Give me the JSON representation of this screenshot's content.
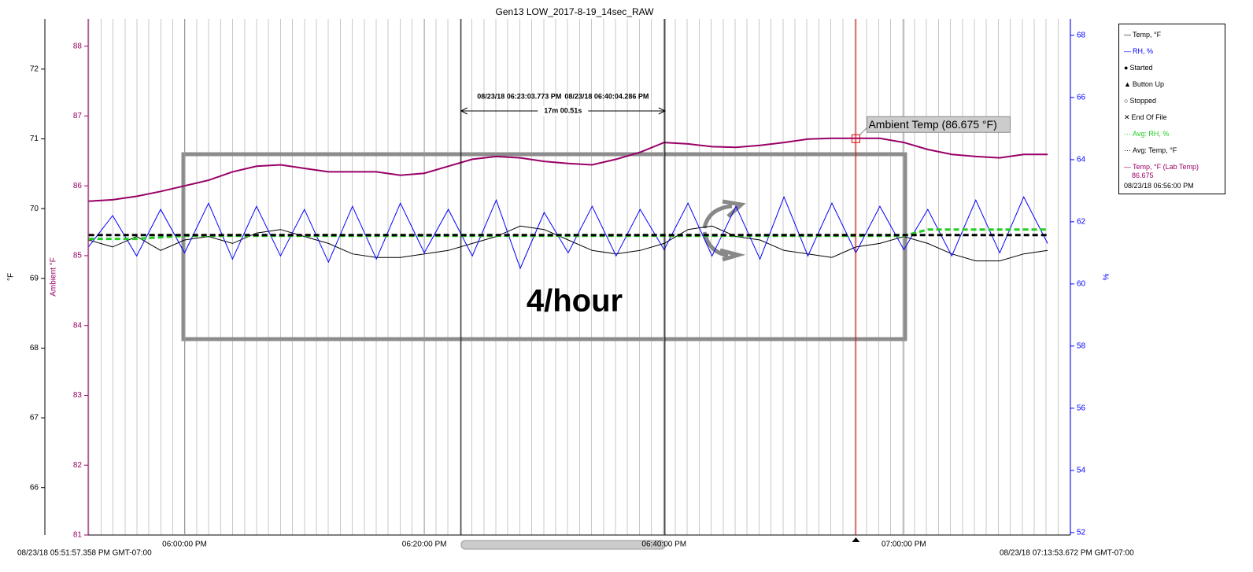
{
  "chart_data": {
    "type": "line",
    "title": "Gen13 LOW_2017-8-19_14sec_RAW",
    "ylabel": "°F",
    "y2label": "Ambient °F",
    "y3label": "%",
    "xlim": [
      "08/23/18 05:51:57.358 PM GMT-07:00",
      "08/23/18 07:13:53.672 PM GMT-07:00"
    ],
    "xticks": [
      "06:00:00 PM",
      "06:20:00 PM",
      "06:40:00 PM",
      "07:00:00 PM"
    ],
    "ylim": [
      65.32,
      72.72
    ],
    "yticks": [
      66,
      67,
      68,
      69,
      70,
      71,
      72
    ],
    "y2lim": [
      81,
      88.39
    ],
    "y2ticks": [
      81,
      82,
      83,
      84,
      85,
      86,
      87,
      88
    ],
    "y3lim": [
      51.92,
      68.53
    ],
    "y3ticks": [
      52,
      54,
      56,
      58,
      60,
      62,
      64,
      66,
      68
    ],
    "x": [
      "05:52:00 PM",
      "05:54:00 PM",
      "05:56:00 PM",
      "05:58:00 PM",
      "06:00:00 PM",
      "06:02:00 PM",
      "06:04:00 PM",
      "06:06:00 PM",
      "06:08:00 PM",
      "06:10:00 PM",
      "06:12:00 PM",
      "06:14:00 PM",
      "06:16:00 PM",
      "06:18:00 PM",
      "06:20:00 PM",
      "06:22:00 PM",
      "06:24:00 PM",
      "06:26:00 PM",
      "06:28:00 PM",
      "06:30:00 PM",
      "06:32:00 PM",
      "06:34:00 PM",
      "06:36:00 PM",
      "06:38:00 PM",
      "06:40:00 PM",
      "06:42:00 PM",
      "06:44:00 PM",
      "06:46:00 PM",
      "06:48:00 PM",
      "06:50:00 PM",
      "06:52:00 PM",
      "06:54:00 PM",
      "06:56:00 PM",
      "06:58:00 PM",
      "07:00:00 PM",
      "07:02:00 PM",
      "07:04:00 PM",
      "07:06:00 PM",
      "07:08:00 PM",
      "07:10:00 PM",
      "07:12:00 PM"
    ],
    "series": [
      {
        "name": "Temp, °F",
        "color": "#000000",
        "axis": "y",
        "values": [
          69.55,
          69.45,
          69.6,
          69.4,
          69.55,
          69.6,
          69.5,
          69.65,
          69.7,
          69.6,
          69.5,
          69.35,
          69.3,
          69.3,
          69.35,
          69.4,
          69.5,
          69.6,
          69.75,
          69.7,
          69.55,
          69.4,
          69.35,
          69.4,
          69.5,
          69.7,
          69.75,
          69.6,
          69.55,
          69.4,
          69.35,
          69.3,
          69.45,
          69.5,
          69.6,
          69.5,
          69.35,
          69.25,
          69.25,
          69.35,
          69.4
        ]
      },
      {
        "name": "RH, %",
        "color": "#0000ff",
        "axis": "y3",
        "values": [
          61.2,
          62.2,
          60.9,
          62.4,
          61.0,
          62.6,
          60.8,
          62.5,
          60.9,
          62.4,
          60.7,
          62.5,
          60.8,
          62.6,
          61.0,
          62.4,
          60.9,
          62.7,
          60.5,
          62.3,
          61.0,
          62.5,
          60.9,
          62.4,
          61.1,
          62.6,
          60.9,
          62.5,
          60.8,
          62.8,
          60.9,
          62.6,
          61.0,
          62.5,
          61.1,
          62.4,
          60.9,
          62.7,
          61.0,
          62.8,
          61.3
        ]
      },
      {
        "name": "Avg: RH, %",
        "color": "#22cc22",
        "axis": "y3",
        "dashed": true,
        "values": [
          61.45,
          61.45,
          61.45,
          61.5,
          61.55,
          61.55,
          61.55,
          61.55,
          61.55,
          61.55,
          61.55,
          61.55,
          61.55,
          61.55,
          61.55,
          61.55,
          61.55,
          61.55,
          61.55,
          61.55,
          61.55,
          61.55,
          61.55,
          61.55,
          61.55,
          61.55,
          61.55,
          61.55,
          61.55,
          61.55,
          61.55,
          61.55,
          61.55,
          61.55,
          61.55,
          61.75,
          61.75,
          61.75,
          61.75,
          61.75,
          61.75
        ]
      },
      {
        "name": "Avg: Temp, °F",
        "color": "#000000",
        "axis": "y",
        "dashed": true,
        "values": [
          69.62,
          69.62,
          69.62,
          69.62,
          69.62,
          69.62,
          69.62,
          69.62,
          69.62,
          69.62,
          69.62,
          69.62,
          69.62,
          69.62,
          69.62,
          69.62,
          69.62,
          69.62,
          69.62,
          69.62,
          69.62,
          69.62,
          69.62,
          69.62,
          69.62,
          69.62,
          69.62,
          69.62,
          69.62,
          69.62,
          69.62,
          69.62,
          69.62,
          69.62,
          69.62,
          69.62,
          69.62,
          69.62,
          69.62,
          69.62,
          69.62
        ]
      },
      {
        "name": "Temp, °F (Lab Temp)",
        "color": "#990066",
        "axis": "y2",
        "cursor_value": 86.675,
        "values": [
          85.78,
          85.8,
          85.85,
          85.92,
          86.0,
          86.08,
          86.2,
          86.28,
          86.3,
          86.25,
          86.2,
          86.2,
          86.2,
          86.15,
          86.18,
          86.28,
          86.38,
          86.42,
          86.4,
          86.35,
          86.32,
          86.3,
          86.38,
          86.48,
          86.62,
          86.6,
          86.56,
          86.55,
          86.58,
          86.62,
          86.67,
          86.68,
          86.68,
          86.68,
          86.62,
          86.52,
          86.45,
          86.42,
          86.4,
          86.45,
          86.45
        ]
      }
    ],
    "markers": [
      {
        "name": "Started",
        "symbol": "●"
      },
      {
        "name": "Button Up",
        "symbol": "▲"
      },
      {
        "name": "Stopped",
        "symbol": "○"
      },
      {
        "name": "End Of File",
        "symbol": "✕"
      }
    ],
    "cursors": [
      "08/23/18 06:23:03.773 PM",
      "08/23/18 06:40:04.286 PM"
    ],
    "cursor_delta": "17m 00.51s",
    "readout": {
      "time": "08/23/18 06:56:00 PM",
      "label": "Ambient Temp (86.675 °F)"
    },
    "overlay_text": "4/hour"
  }
}
